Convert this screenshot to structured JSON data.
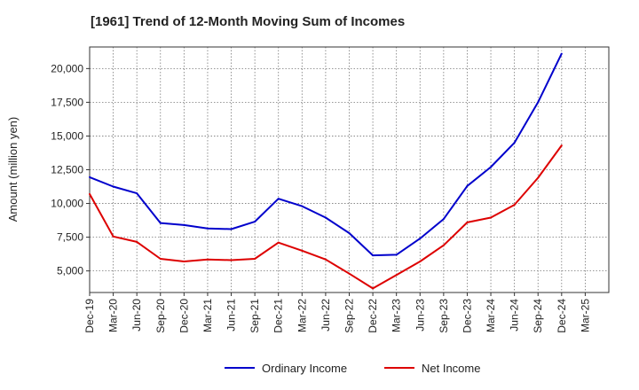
{
  "chart_data": {
    "type": "line",
    "title": "[1961]  Trend of 12-Month Moving Sum of Incomes",
    "xlabel": "",
    "ylabel": "Amount (million yen)",
    "ylim": [
      3400,
      21600
    ],
    "yticks": [
      5000,
      7500,
      10000,
      12500,
      15000,
      17500,
      20000
    ],
    "ytick_labels": [
      "5,000",
      "7,500",
      "10,000",
      "12,500",
      "15,000",
      "17,500",
      "20,000"
    ],
    "grid": true,
    "legend_position": "bottom-center",
    "categories": [
      "Dec-19",
      "Mar-20",
      "Jun-20",
      "Sep-20",
      "Dec-20",
      "Mar-21",
      "Jun-21",
      "Sep-21",
      "Dec-21",
      "Mar-22",
      "Jun-22",
      "Sep-22",
      "Dec-22",
      "Mar-23",
      "Jun-23",
      "Sep-23",
      "Dec-23",
      "Mar-24",
      "Jun-24",
      "Sep-24",
      "Dec-24",
      "Mar-25"
    ],
    "series": [
      {
        "name": "Ordinary Income",
        "color": "#0000cc",
        "values": [
          11950,
          11250,
          10750,
          8550,
          8400,
          8150,
          8100,
          8650,
          10350,
          9800,
          8950,
          7800,
          6150,
          6200,
          7400,
          8850,
          11300,
          12700,
          14500,
          17500,
          21100,
          null
        ]
      },
      {
        "name": "Net Income",
        "color": "#dd0000",
        "values": [
          10700,
          7550,
          7150,
          5900,
          5700,
          5850,
          5800,
          5900,
          7100,
          6500,
          5850,
          4800,
          3700,
          4700,
          5700,
          6900,
          8600,
          8950,
          9900,
          11900,
          14300,
          null
        ]
      }
    ]
  }
}
